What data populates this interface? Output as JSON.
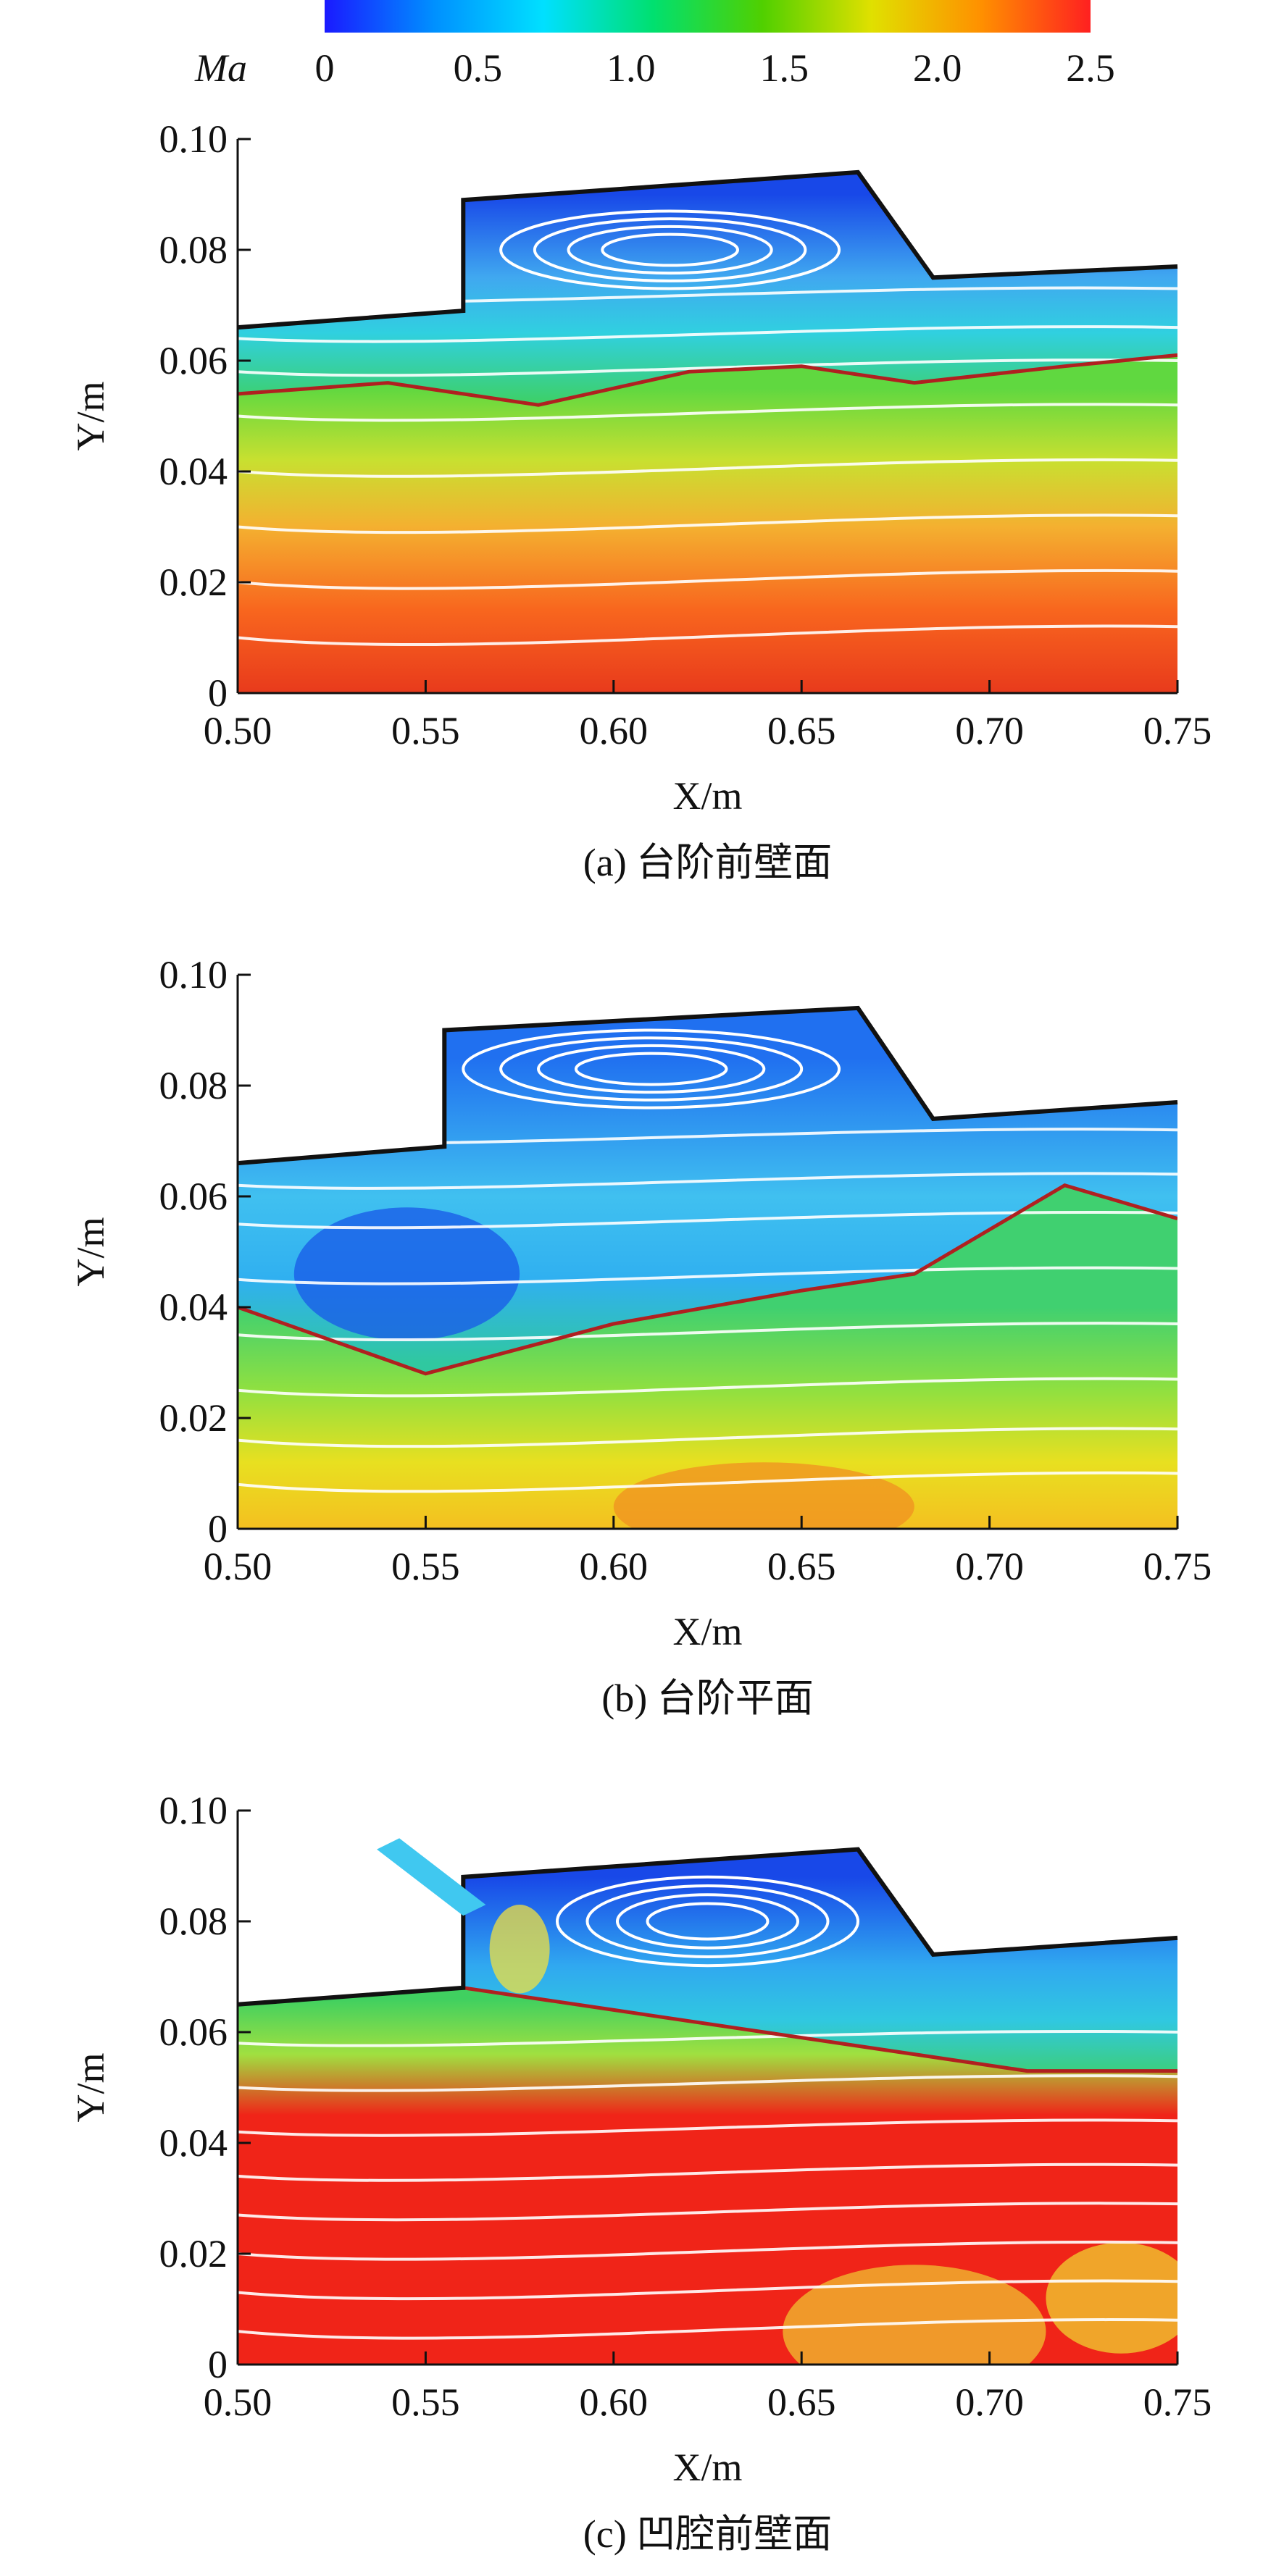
{
  "colorbar": {
    "label": "Ma",
    "lim": [
      0,
      2.5
    ],
    "ticks": [
      0,
      0.5,
      {
        "value": 1,
        "label": "1.0"
      },
      1.5,
      {
        "value": 2,
        "label": "2.0"
      },
      2.5
    ],
    "colors": [
      "#1a1aff",
      "#0090ff",
      "#00e0ff",
      "#00e070",
      "#50d000",
      "#e0e000",
      "#ff9000",
      "#ff2020"
    ]
  },
  "chart_data": [
    {
      "type": "contour",
      "xlabel": "X/m",
      "ylabel": "Y/m",
      "caption": "(a) 台阶前壁面",
      "xlim": [
        0.5,
        0.75
      ],
      "ylim": [
        0,
        0.1
      ],
      "xticks": [
        {
          "value": 0.5,
          "label": "0.50"
        },
        {
          "value": 0.55,
          "label": "0.55"
        },
        {
          "value": 0.6,
          "label": "0.60"
        },
        {
          "value": 0.65,
          "label": "0.65"
        },
        {
          "value": 0.7,
          "label": "0.70"
        },
        {
          "value": 0.75,
          "label": "0.75"
        }
      ],
      "yticks": [
        0,
        0.02,
        0.04,
        0.06,
        0.08,
        {
          "value": 0.1,
          "label": "0.10"
        }
      ]
    },
    {
      "type": "contour",
      "xlabel": "X/m",
      "ylabel": "Y/m",
      "caption": "(b) 台阶平面",
      "xlim": [
        0.5,
        0.75
      ],
      "ylim": [
        0,
        0.1
      ],
      "xticks": [
        {
          "value": 0.5,
          "label": "0.50"
        },
        {
          "value": 0.55,
          "label": "0.55"
        },
        {
          "value": 0.6,
          "label": "0.60"
        },
        {
          "value": 0.65,
          "label": "0.65"
        },
        {
          "value": 0.7,
          "label": "0.70"
        },
        {
          "value": 0.75,
          "label": "0.75"
        }
      ],
      "yticks": [
        0,
        0.02,
        0.04,
        0.06,
        0.08,
        {
          "value": 0.1,
          "label": "0.10"
        }
      ]
    },
    {
      "type": "contour",
      "xlabel": "X/m",
      "ylabel": "Y/m",
      "caption": "(c) 凹腔前壁面",
      "xlim": [
        0.5,
        0.75
      ],
      "ylim": [
        0,
        0.1
      ],
      "xticks": [
        {
          "value": 0.5,
          "label": "0.50"
        },
        {
          "value": 0.55,
          "label": "0.55"
        },
        {
          "value": 0.6,
          "label": "0.60"
        },
        {
          "value": 0.65,
          "label": "0.65"
        },
        {
          "value": 0.7,
          "label": "0.70"
        },
        {
          "value": 0.75,
          "label": "0.75"
        }
      ],
      "yticks": [
        0,
        0.02,
        0.04,
        0.06,
        0.08,
        {
          "value": 0.1,
          "label": "0.10"
        }
      ]
    }
  ]
}
